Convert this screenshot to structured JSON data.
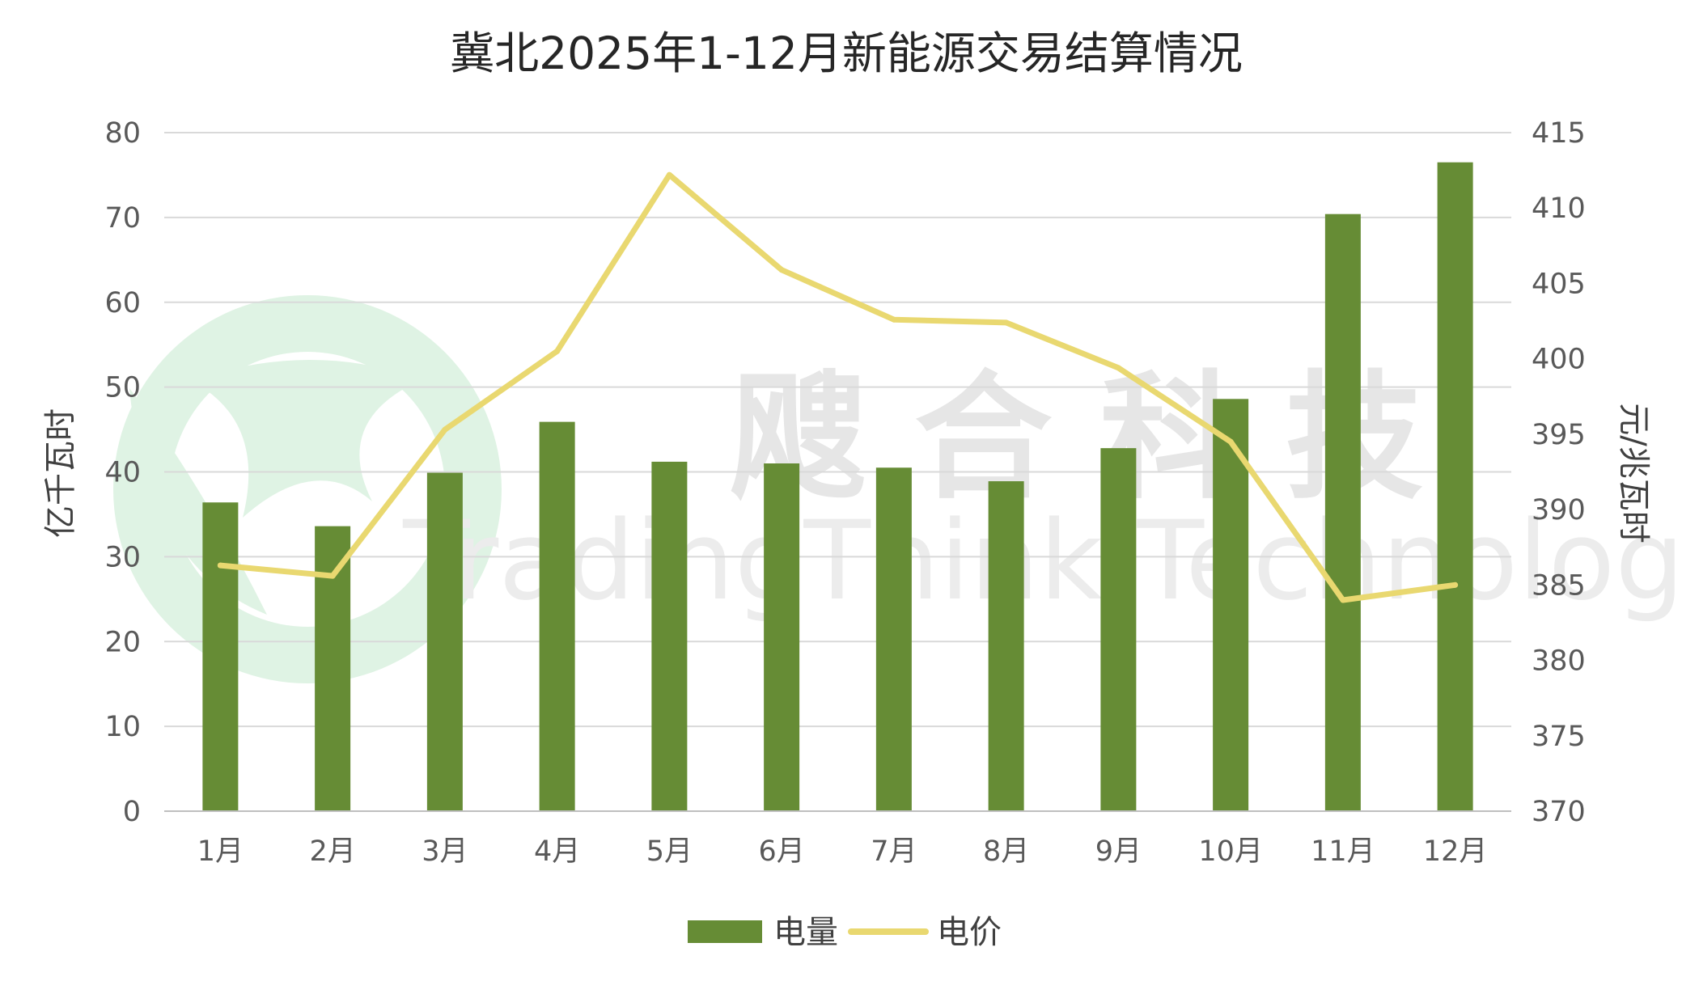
{
  "watermark": {
    "text_cn": "飕 合 科 技",
    "text_en": "TradingThink Technology"
  },
  "chart_data": {
    "type": "bar",
    "title": "冀北2025年1-12月新能源交易结算情况",
    "categories": [
      "1月",
      "2月",
      "3月",
      "4月",
      "5月",
      "6月",
      "7月",
      "8月",
      "9月",
      "10月",
      "11月",
      "12月"
    ],
    "series": [
      {
        "name": "电量",
        "type": "bar",
        "axis": "left",
        "color": "#668c35",
        "values": [
          36.4,
          33.6,
          39.9,
          45.9,
          41.2,
          41.0,
          40.5,
          38.9,
          42.8,
          48.6,
          70.4,
          76.5
        ]
      },
      {
        "name": "电价",
        "type": "line",
        "axis": "right",
        "color": "#e9d870",
        "values": [
          386.3,
          385.6,
          395.3,
          400.5,
          412.2,
          405.9,
          402.6,
          402.4,
          399.4,
          394.5,
          384.0,
          385.0
        ]
      }
    ],
    "ylabel": "亿千瓦时",
    "ylim": [
      0,
      80
    ],
    "yticks": [
      "0",
      "10",
      "20",
      "30",
      "40",
      "50",
      "60",
      "70",
      "80"
    ],
    "y2label": "元/兆瓦时",
    "y2lim": [
      370,
      415
    ],
    "y2ticks": [
      "370",
      "375",
      "380",
      "385",
      "390",
      "395",
      "400",
      "405",
      "410",
      "415"
    ],
    "grid": true,
    "legend": "bottom-center"
  }
}
